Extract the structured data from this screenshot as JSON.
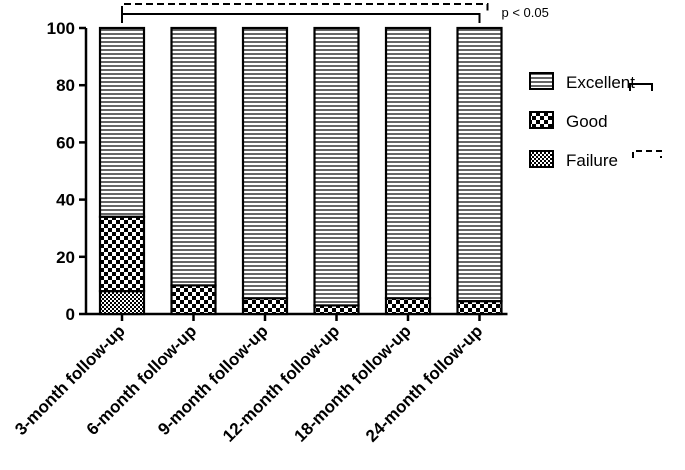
{
  "chart_data": {
    "type": "bar",
    "stacked": true,
    "title": "",
    "xlabel": "",
    "ylabel": "",
    "ylim": [
      0,
      100
    ],
    "yticks": [
      "0",
      "20",
      "40",
      "60",
      "80",
      "100"
    ],
    "categories": [
      "3-month follow-up",
      "6-month follow-up",
      "9-month follow-up",
      "12-month follow-up",
      "18-month follow-up",
      "24-month follow-up"
    ],
    "series": [
      {
        "name": "Failure",
        "pattern": "crosshatch-fine",
        "values": [
          8,
          0,
          0,
          0,
          0,
          0
        ]
      },
      {
        "name": "Good",
        "pattern": "checker",
        "values": [
          26,
          10,
          5.5,
          3,
          5.5,
          4.5
        ]
      },
      {
        "name": "Excellent",
        "pattern": "horizontal-lines",
        "values": [
          66,
          90,
          94.5,
          97,
          94.5,
          95.5
        ]
      }
    ],
    "legend_position": "right",
    "legend_order": [
      "Excellent",
      "Good",
      "Failure"
    ],
    "significance": {
      "label": "p < 0.05"
    },
    "colors": {
      "ink": "#000000",
      "background": "#ffffff"
    }
  }
}
